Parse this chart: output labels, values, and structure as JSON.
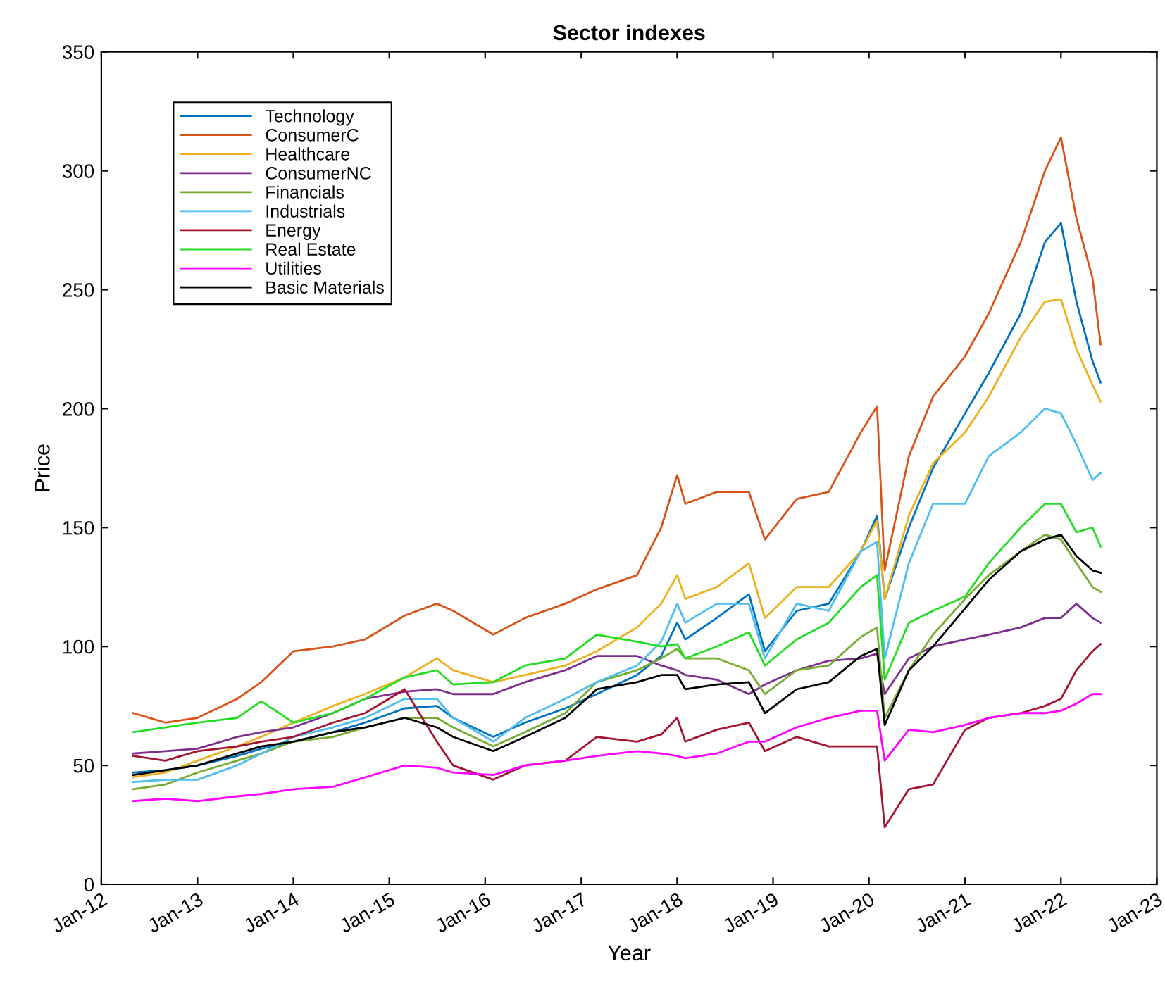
{
  "chart_data": {
    "type": "line",
    "title": "Sector indexes",
    "xlabel": "Year",
    "ylabel": "Price",
    "x": [
      "2012-05",
      "2012-09",
      "2013-01",
      "2013-06",
      "2013-09",
      "2014-01",
      "2014-06",
      "2014-10",
      "2015-03",
      "2015-07",
      "2015-09",
      "2016-02",
      "2016-06",
      "2016-11",
      "2017-03",
      "2017-08",
      "2017-11",
      "2018-01",
      "2018-02",
      "2018-06",
      "2018-10",
      "2018-12",
      "2019-04",
      "2019-08",
      "2019-12",
      "2020-02",
      "2020-03",
      "2020-06",
      "2020-09",
      "2021-01",
      "2021-04",
      "2021-08",
      "2021-11",
      "2022-01",
      "2022-03",
      "2022-05",
      "2022-06"
    ],
    "series": [
      {
        "name": "Technology",
        "color": "#0072bd",
        "values": [
          47,
          48,
          50,
          54,
          57,
          60,
          64,
          68,
          74,
          75,
          70,
          62,
          68,
          74,
          80,
          88,
          96,
          110,
          103,
          112,
          122,
          98,
          115,
          118,
          140,
          155,
          120,
          150,
          175,
          198,
          215,
          240,
          270,
          278,
          245,
          220,
          211
        ]
      },
      {
        "name": "ConsumerC",
        "color": "#d95319",
        "values": [
          72,
          68,
          70,
          78,
          85,
          98,
          100,
          103,
          113,
          118,
          115,
          105,
          112,
          118,
          124,
          130,
          150,
          172,
          160,
          165,
          165,
          145,
          162,
          165,
          190,
          201,
          132,
          180,
          205,
          222,
          240,
          270,
          300,
          314,
          280,
          255,
          227
        ]
      },
      {
        "name": "Healthcare",
        "color": "#edb120",
        "values": [
          45,
          47,
          52,
          58,
          62,
          68,
          75,
          80,
          87,
          95,
          90,
          85,
          88,
          92,
          98,
          108,
          118,
          130,
          120,
          125,
          135,
          112,
          125,
          125,
          140,
          153,
          120,
          155,
          177,
          190,
          205,
          230,
          245,
          246,
          225,
          210,
          203
        ]
      },
      {
        "name": "ConsumerNC",
        "color": "#7e2f8e",
        "values": [
          55,
          56,
          57,
          62,
          64,
          66,
          72,
          78,
          81,
          82,
          80,
          80,
          85,
          90,
          96,
          96,
          92,
          90,
          88,
          86,
          80,
          84,
          90,
          94,
          95,
          97,
          80,
          95,
          100,
          103,
          105,
          108,
          112,
          112,
          118,
          112,
          110
        ]
      },
      {
        "name": "Financials",
        "color": "#77ac30",
        "values": [
          40,
          42,
          47,
          52,
          55,
          60,
          62,
          66,
          70,
          70,
          66,
          58,
          64,
          72,
          85,
          90,
          95,
          99,
          95,
          95,
          90,
          80,
          90,
          92,
          104,
          108,
          70,
          90,
          105,
          120,
          130,
          140,
          147,
          145,
          135,
          125,
          123
        ]
      },
      {
        "name": "Industrials",
        "color": "#4dbeee",
        "values": [
          43,
          44,
          44,
          50,
          55,
          62,
          66,
          70,
          78,
          78,
          70,
          60,
          70,
          78,
          85,
          92,
          102,
          118,
          110,
          118,
          118,
          95,
          118,
          115,
          140,
          144,
          95,
          135,
          160,
          160,
          180,
          190,
          200,
          198,
          185,
          170,
          173
        ]
      },
      {
        "name": "Energy",
        "color": "#a2142f",
        "values": [
          54,
          52,
          56,
          58,
          60,
          62,
          68,
          72,
          82,
          60,
          50,
          44,
          50,
          52,
          62,
          60,
          63,
          70,
          60,
          65,
          68,
          56,
          62,
          58,
          58,
          58,
          24,
          40,
          42,
          65,
          70,
          72,
          75,
          78,
          90,
          98,
          101
        ]
      },
      {
        "name": "Real Estate",
        "color": "#22dd22",
        "values": [
          64,
          66,
          68,
          70,
          77,
          68,
          72,
          78,
          87,
          90,
          84,
          85,
          92,
          95,
          105,
          102,
          100,
          101,
          95,
          100,
          106,
          92,
          103,
          110,
          125,
          130,
          86,
          110,
          115,
          121,
          135,
          150,
          160,
          160,
          148,
          150,
          142
        ]
      },
      {
        "name": "Utilities",
        "color": "#ff00ff",
        "values": [
          35,
          36,
          35,
          37,
          38,
          40,
          41,
          45,
          50,
          49,
          47,
          46,
          50,
          52,
          54,
          56,
          55,
          54,
          53,
          55,
          60,
          60,
          66,
          70,
          73,
          73,
          52,
          65,
          64,
          67,
          70,
          72,
          72,
          73,
          76,
          80,
          80
        ]
      },
      {
        "name": "Basic Materials",
        "color": "#000000",
        "values": [
          46,
          48,
          50,
          55,
          58,
          60,
          64,
          66,
          70,
          66,
          62,
          56,
          62,
          70,
          82,
          85,
          88,
          88,
          82,
          84,
          85,
          72,
          82,
          85,
          96,
          99,
          67,
          90,
          100,
          116,
          128,
          140,
          145,
          147,
          138,
          132,
          131
        ]
      }
    ],
    "xlim": [
      "2012-01",
      "2023-01"
    ],
    "xticks": [
      {
        "value": "2012-01",
        "label": "Jan-12"
      },
      {
        "value": "2013-01",
        "label": "Jan-13"
      },
      {
        "value": "2014-01",
        "label": "Jan-14"
      },
      {
        "value": "2015-01",
        "label": "Jan-15"
      },
      {
        "value": "2016-01",
        "label": "Jan-16"
      },
      {
        "value": "2017-01",
        "label": "Jan-17"
      },
      {
        "value": "2018-01",
        "label": "Jan-18"
      },
      {
        "value": "2019-01",
        "label": "Jan-19"
      },
      {
        "value": "2020-01",
        "label": "Jan-20"
      },
      {
        "value": "2021-01",
        "label": "Jan-21"
      },
      {
        "value": "2022-01",
        "label": "Jan-22"
      },
      {
        "value": "2023-01",
        "label": "Jan-23"
      }
    ],
    "ylim": [
      0,
      350
    ],
    "yticks": [
      0,
      50,
      100,
      150,
      200,
      250,
      300,
      350
    ],
    "grid": false,
    "legend": "top left",
    "marker": "none",
    "line_style": "solid"
  }
}
